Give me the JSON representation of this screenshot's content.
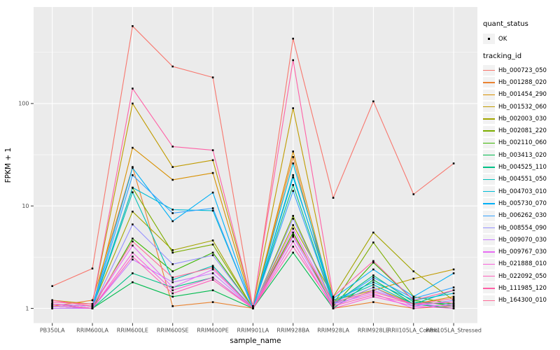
{
  "chart_data": {
    "type": "line",
    "title": "",
    "xlabel": "sample_name",
    "ylabel": "FPKM + 1",
    "y_scale": "log10",
    "grid": "on",
    "panel_bg": "#EBEBEB",
    "grid_color": "#FFFFFF",
    "tick_label_color": "#4D4D4D",
    "point_color": "#000000",
    "legend_key_bg": "#F2F2F2",
    "y_ticks": [
      1,
      10,
      100
    ],
    "y_tick_labels": [
      "1",
      "10",
      "100"
    ],
    "y_minor_breaks": [
      3.162,
      31.62,
      316.2
    ],
    "ylim": [
      0.72,
      870
    ],
    "categories": [
      "PB350LA",
      "RRIM600LA",
      "RRIM600LE",
      "RRIM600SE",
      "RRIM600PE",
      "RRIM901LA",
      "RRIM928BA",
      "RRIM928LA",
      "RRIM928LE",
      "RRII105LA_Control",
      "RRII105LA_Stressed"
    ],
    "legend": {
      "quant_status_title": "quant_status",
      "quant_status_items": [
        {
          "label": "OK",
          "marker": "point"
        }
      ],
      "tracking_id_title": "tracking_id",
      "position": "right"
    },
    "series": [
      {
        "name": "Hb_000723_050",
        "color": "#F8766D",
        "values": [
          1.65,
          2.45,
          570,
          230,
          180,
          1.0,
          430,
          12,
          105,
          13,
          26
        ]
      },
      {
        "name": "Hb_001288_020",
        "color": "#EA8331",
        "values": [
          1.05,
          1.2,
          24,
          1.05,
          1.15,
          1.0,
          30,
          1.0,
          1.15,
          1.0,
          1.05
        ]
      },
      {
        "name": "Hb_001454_290",
        "color": "#D89000",
        "values": [
          1.1,
          1.0,
          37,
          18,
          21,
          1.0,
          34,
          1.1,
          1.6,
          1.1,
          1.3
        ]
      },
      {
        "name": "Hb_001532_060",
        "color": "#C09B00",
        "values": [
          1.2,
          1.1,
          100,
          24,
          28,
          1.05,
          90,
          1.2,
          1.5,
          1.95,
          2.4
        ]
      },
      {
        "name": "Hb_002003_030",
        "color": "#A3A500",
        "values": [
          1.1,
          1.05,
          8.8,
          3.7,
          4.6,
          1.0,
          6.5,
          1.3,
          5.5,
          2.3,
          1.2
        ]
      },
      {
        "name": "Hb_002081_220",
        "color": "#7CAE00",
        "values": [
          1.05,
          1.0,
          15,
          3.5,
          4.2,
          1.0,
          8.0,
          1.1,
          4.4,
          1.3,
          1.1
        ]
      },
      {
        "name": "Hb_002110_060",
        "color": "#39B600",
        "values": [
          1.0,
          1.0,
          4.8,
          2.3,
          3.5,
          1.0,
          5.5,
          1.05,
          2.8,
          1.2,
          1.05
        ]
      },
      {
        "name": "Hb_003413_020",
        "color": "#00BB4E",
        "values": [
          1.0,
          1.0,
          1.8,
          1.3,
          1.5,
          1.0,
          3.5,
          1.0,
          1.9,
          1.1,
          1.0
        ]
      },
      {
        "name": "Hb_004525_110",
        "color": "#00C087",
        "values": [
          1.05,
          1.0,
          2.2,
          1.6,
          2.0,
          1.0,
          16,
          1.1,
          2.1,
          1.15,
          1.1
        ]
      },
      {
        "name": "Hb_004551_050",
        "color": "#00C0B8",
        "values": [
          1.1,
          1.0,
          13.6,
          1.9,
          2.6,
          1.0,
          20,
          1.15,
          1.7,
          1.1,
          1.5
        ]
      },
      {
        "name": "Hb_004703_010",
        "color": "#00BCD8",
        "values": [
          1.05,
          1.0,
          15.1,
          9.2,
          9.0,
          1.0,
          26,
          1.2,
          1.8,
          1.2,
          1.4
        ]
      },
      {
        "name": "Hb_005730_070",
        "color": "#00B0F6",
        "values": [
          1.1,
          1.05,
          23.5,
          7.1,
          13.5,
          1.0,
          19,
          1.25,
          2.4,
          1.3,
          2.2
        ]
      },
      {
        "name": "Hb_006262_030",
        "color": "#35A2FF",
        "values": [
          1.0,
          1.0,
          20,
          8.5,
          9.5,
          1.0,
          14,
          1.1,
          2.0,
          1.25,
          1.6
        ]
      },
      {
        "name": "Hb_008554_090",
        "color": "#9590FF",
        "values": [
          1.05,
          1.0,
          6.6,
          2.7,
          3.3,
          1.0,
          7.5,
          1.1,
          1.6,
          1.05,
          1.2
        ]
      },
      {
        "name": "Hb_009070_030",
        "color": "#C77CFF",
        "values": [
          1.0,
          1.0,
          3.0,
          1.8,
          2.2,
          1.0,
          5.0,
          1.05,
          1.5,
          1.1,
          1.05
        ]
      },
      {
        "name": "Hb_009767_030",
        "color": "#E76BF3",
        "values": [
          1.1,
          1.05,
          4.1,
          1.6,
          2.4,
          1.0,
          6.0,
          1.1,
          1.4,
          1.0,
          1.1
        ]
      },
      {
        "name": "Hb_021888_010",
        "color": "#FA62DB",
        "values": [
          1.05,
          1.0,
          3.5,
          1.5,
          2.0,
          1.0,
          4.5,
          1.0,
          1.3,
          1.05,
          1.0
        ]
      },
      {
        "name": "Hb_022092_050",
        "color": "#FF62BC",
        "values": [
          1.1,
          1.0,
          3.2,
          1.4,
          1.9,
          1.0,
          4.0,
          1.05,
          1.35,
          1.1,
          1.15
        ]
      },
      {
        "name": "Hb_111985_120",
        "color": "#FF61A6",
        "values": [
          1.15,
          1.1,
          140,
          38,
          35,
          1.05,
          265,
          1.3,
          2.9,
          1.2,
          1.5
        ]
      },
      {
        "name": "Hb_164300_010",
        "color": "#FF6A98",
        "values": [
          1.2,
          1.05,
          4.5,
          2.0,
          2.5,
          1.0,
          5.2,
          1.15,
          1.45,
          1.1,
          1.25
        ]
      }
    ]
  }
}
